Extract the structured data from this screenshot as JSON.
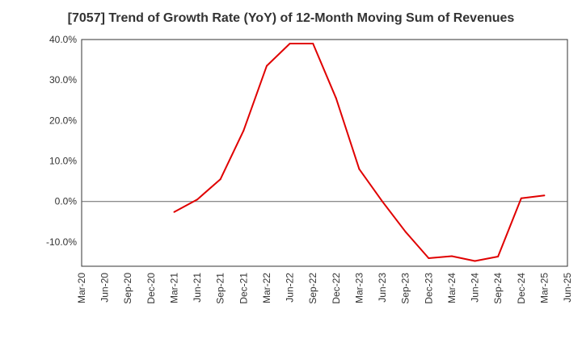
{
  "chart_data": {
    "type": "line",
    "title": "[7057]  Trend of Growth Rate (YoY) of 12-Month Moving Sum of Revenues",
    "xlabel": "",
    "ylabel": "",
    "ylim": [
      -16,
      40
    ],
    "y_ticks": [
      40,
      30,
      20,
      10,
      0,
      -10
    ],
    "y_tick_labels": [
      "40.0%",
      "30.0%",
      "20.0%",
      "10.0%",
      "0.0%",
      "-10.0%"
    ],
    "x_tick_labels": [
      "Mar-20",
      "Jun-20",
      "Sep-20",
      "Dec-20",
      "Mar-21",
      "Jun-21",
      "Sep-21",
      "Dec-21",
      "Mar-22",
      "Jun-22",
      "Sep-22",
      "Dec-22",
      "Mar-23",
      "Jun-23",
      "Sep-23",
      "Dec-23",
      "Mar-24",
      "Jun-24",
      "Sep-24",
      "Dec-24",
      "Mar-25",
      "Jun-25"
    ],
    "grid": true,
    "series": [
      {
        "color": "#e00000",
        "x": [
          "Mar-21",
          "Jun-21",
          "Sep-21",
          "Dec-21",
          "Mar-22",
          "Jun-22",
          "Sep-22",
          "Dec-22",
          "Mar-23",
          "Jun-23",
          "Sep-23",
          "Dec-23",
          "Mar-24",
          "Jun-24",
          "Sep-24",
          "Dec-24",
          "Mar-25"
        ],
        "values": [
          -2.6,
          0.5,
          5.5,
          17.5,
          33.5,
          39.0,
          39.0,
          25.5,
          8.0,
          0.0,
          -7.5,
          -14.0,
          -13.5,
          -14.7,
          -13.6,
          0.8,
          1.5
        ]
      }
    ]
  }
}
